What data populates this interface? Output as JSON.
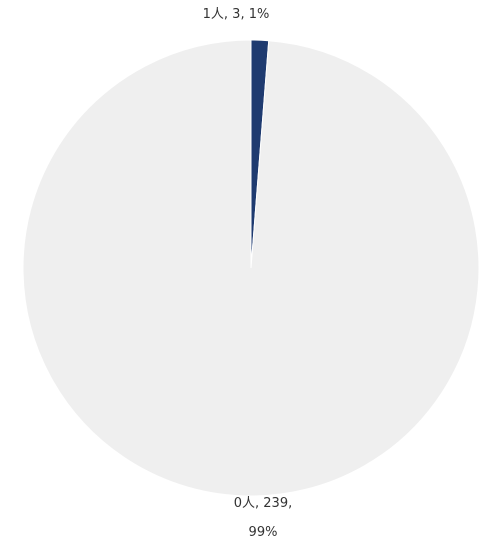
{
  "chart_data": {
    "type": "pie",
    "slices": [
      {
        "category": "1人",
        "value": 3,
        "percent": "1%",
        "label": "1人, 3, 1%",
        "color": "#1f3b70"
      },
      {
        "category": "0人",
        "value": 239,
        "percent": "99%",
        "label_line1": "0人, 239,",
        "label_line2": "99%",
        "color": "#efefef"
      }
    ],
    "start_angle_deg": 0,
    "direction": "clockwise",
    "legend": "none"
  }
}
